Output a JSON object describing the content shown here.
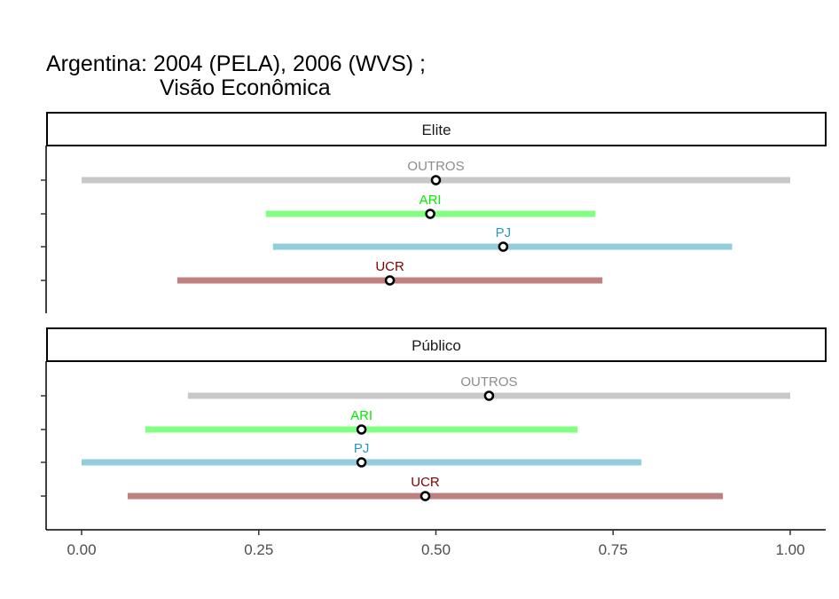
{
  "chart_data": {
    "type": "interval",
    "title_line1": "Argentina: 2004 (PELA), 2006 (WVS) ;",
    "title_line2": "Visão Econômica",
    "x_ticks": [
      0,
      0.25,
      0.5,
      0.75,
      1
    ],
    "x_tick_labels": [
      "0.00",
      "0.25",
      "0.50",
      "0.75",
      "1.00"
    ],
    "xlim": [
      -0.05,
      1.05
    ],
    "parties": [
      {
        "name": "OUTROS",
        "line_color": "#c8c8c8",
        "label_color": "#8c8c8c"
      },
      {
        "name": "ARI",
        "line_color": "#80ff80",
        "label_color": "#00ee00"
      },
      {
        "name": "PJ",
        "line_color": "#92cddb",
        "label_color": "#2a97bf"
      },
      {
        "name": "UCR",
        "line_color": "#bf8080",
        "label_color": "#800000"
      }
    ],
    "panels": [
      {
        "strip": "Elite",
        "rows": [
          {
            "party": "OUTROS",
            "low": 0.0,
            "high": 1.0,
            "point": 0.5
          },
          {
            "party": "ARI",
            "low": 0.26,
            "high": 0.725,
            "point": 0.492
          },
          {
            "party": "PJ",
            "low": 0.27,
            "high": 0.918,
            "point": 0.595
          },
          {
            "party": "UCR",
            "low": 0.135,
            "high": 0.735,
            "point": 0.435
          }
        ]
      },
      {
        "strip": "Público",
        "rows": [
          {
            "party": "OUTROS",
            "low": 0.15,
            "high": 1.0,
            "point": 0.575
          },
          {
            "party": "ARI",
            "low": 0.09,
            "high": 0.7,
            "point": 0.395
          },
          {
            "party": "PJ",
            "low": 0.0,
            "high": 0.79,
            "point": 0.395
          },
          {
            "party": "UCR",
            "low": 0.065,
            "high": 0.905,
            "point": 0.485
          }
        ]
      }
    ]
  }
}
